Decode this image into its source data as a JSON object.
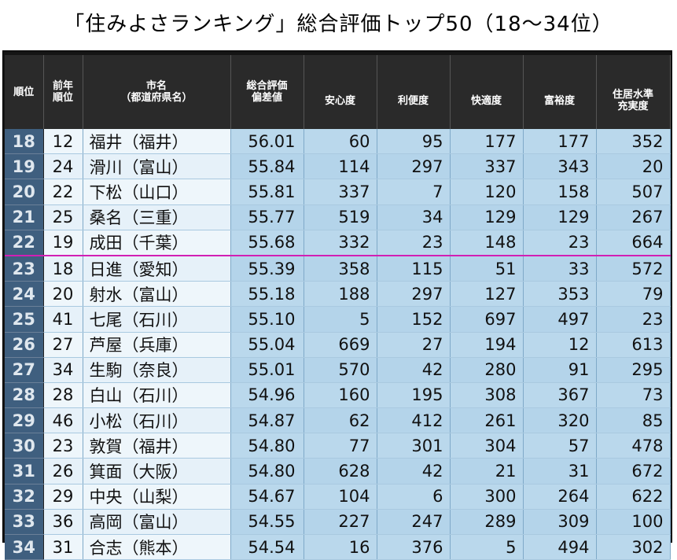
{
  "title": "「住みよさランキング」総合評価トップ50（18～34位）",
  "headers": {
    "rank": "順位",
    "prev": [
      "前年",
      "順位"
    ],
    "city": [
      "市名",
      "（都道府県名）"
    ],
    "score": [
      "総合評価",
      "偏差値"
    ],
    "safety": "安心度",
    "convenience": "利便度",
    "comfort": "快適度",
    "wealth": "富裕度",
    "housing": [
      "住居水準",
      "充実度"
    ]
  },
  "colors": {
    "rank_bg": "#3f5f7f",
    "cell_bg": "#bad8ec",
    "city_bg": "#eef6fb",
    "header_bg": "#2a2a2a",
    "divider": "#d21fb4"
  },
  "rows": [
    {
      "rank": "18",
      "prev": "12",
      "city": "福井（福井）",
      "score": "56.01",
      "safety": "60",
      "convenience": "95",
      "comfort": "177",
      "wealth": "177",
      "housing": "352"
    },
    {
      "rank": "19",
      "prev": "24",
      "city": "滑川（富山）",
      "score": "55.84",
      "safety": "114",
      "convenience": "297",
      "comfort": "337",
      "wealth": "343",
      "housing": "20"
    },
    {
      "rank": "20",
      "prev": "22",
      "city": "下松（山口）",
      "score": "55.81",
      "safety": "337",
      "convenience": "7",
      "comfort": "120",
      "wealth": "158",
      "housing": "507"
    },
    {
      "rank": "21",
      "prev": "25",
      "city": "桑名（三重）",
      "score": "55.77",
      "safety": "519",
      "convenience": "34",
      "comfort": "129",
      "wealth": "129",
      "housing": "267"
    },
    {
      "rank": "22",
      "prev": "19",
      "city": "成田（千葉）",
      "score": "55.68",
      "safety": "332",
      "convenience": "23",
      "comfort": "148",
      "wealth": "23",
      "housing": "664"
    },
    {
      "rank": "23",
      "prev": "18",
      "city": "日進（愛知）",
      "score": "55.39",
      "safety": "358",
      "convenience": "115",
      "comfort": "51",
      "wealth": "33",
      "housing": "572"
    },
    {
      "rank": "24",
      "prev": "20",
      "city": "射水（富山）",
      "score": "55.18",
      "safety": "188",
      "convenience": "297",
      "comfort": "127",
      "wealth": "353",
      "housing": "79"
    },
    {
      "rank": "25",
      "prev": "41",
      "city": "七尾（石川）",
      "score": "55.10",
      "safety": "5",
      "convenience": "152",
      "comfort": "697",
      "wealth": "497",
      "housing": "23"
    },
    {
      "rank": "26",
      "prev": "27",
      "city": "芦屋（兵庫）",
      "score": "55.04",
      "safety": "669",
      "convenience": "27",
      "comfort": "194",
      "wealth": "12",
      "housing": "613"
    },
    {
      "rank": "27",
      "prev": "34",
      "city": "生駒（奈良）",
      "score": "55.01",
      "safety": "570",
      "convenience": "42",
      "comfort": "280",
      "wealth": "91",
      "housing": "295"
    },
    {
      "rank": "28",
      "prev": "28",
      "city": "白山（石川）",
      "score": "54.96",
      "safety": "160",
      "convenience": "195",
      "comfort": "308",
      "wealth": "367",
      "housing": "73"
    },
    {
      "rank": "29",
      "prev": "46",
      "city": "小松（石川）",
      "score": "54.87",
      "safety": "62",
      "convenience": "412",
      "comfort": "261",
      "wealth": "320",
      "housing": "85"
    },
    {
      "rank": "30",
      "prev": "23",
      "city": "敦賀（福井）",
      "score": "54.80",
      "safety": "77",
      "convenience": "301",
      "comfort": "304",
      "wealth": "57",
      "housing": "478"
    },
    {
      "rank": "31",
      "prev": "26",
      "city": "箕面（大阪）",
      "score": "54.80",
      "safety": "628",
      "convenience": "42",
      "comfort": "21",
      "wealth": "31",
      "housing": "672"
    },
    {
      "rank": "32",
      "prev": "29",
      "city": "中央（山梨）",
      "score": "54.67",
      "safety": "104",
      "convenience": "6",
      "comfort": "300",
      "wealth": "264",
      "housing": "622"
    },
    {
      "rank": "33",
      "prev": "36",
      "city": "高岡（富山）",
      "score": "54.55",
      "safety": "227",
      "convenience": "247",
      "comfort": "289",
      "wealth": "309",
      "housing": "100"
    },
    {
      "rank": "34",
      "prev": "31",
      "city": "合志（熊本）",
      "score": "54.54",
      "safety": "16",
      "convenience": "376",
      "comfort": "5",
      "wealth": "494",
      "housing": "302"
    }
  ]
}
